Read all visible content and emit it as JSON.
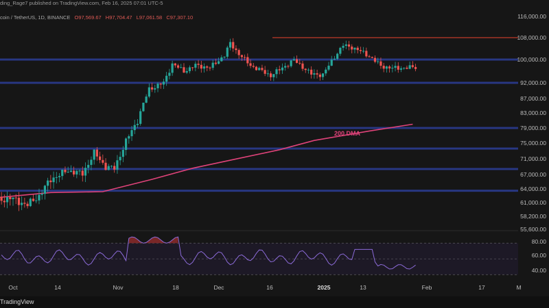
{
  "header": {
    "publish_line": "ding_Rage7 published on TradingView.com, Feb 16, 2025 07:01 UTC-5",
    "symbol": "coin / TetherUS, 1D, BINANCE",
    "ohlc": {
      "o": "O97,569.67",
      "h": "H97,704.47",
      "l": "L97,061.58",
      "c": "C97,307.10"
    }
  },
  "price_axis": {
    "labels": [
      "116,000.00",
      "108,000.00",
      "100,000.00",
      "92,000.00",
      "87,000.00",
      "83,000.00",
      "79,000.00",
      "75,000.00",
      "71,000.00",
      "67,000.00",
      "64,000.00",
      "61,000.00",
      "58,200.00",
      "55,600.00"
    ]
  },
  "rsi_axis": {
    "labels": [
      "80.00",
      "60.00",
      "40.00"
    ]
  },
  "time_axis": {
    "labels": [
      "Oct",
      "14",
      "Nov",
      "18",
      "Dec",
      "16",
      "2025",
      "13",
      "Feb",
      "17",
      "M"
    ]
  },
  "annotation": {
    "dma_label": "200 DMA"
  },
  "footer": {
    "brand": "TradingView"
  },
  "colors": {
    "up": "#26a69a",
    "down": "#ef5350",
    "dma": "#e0437a",
    "support": "#2a3b8f",
    "resistance": "#c0392b",
    "rsi": "#8c6bd9",
    "rsi_overbought_fill": "#8b2a2a"
  },
  "chart_data": {
    "type": "candlestick",
    "title": "",
    "interval": "1D",
    "exchange": "BINANCE",
    "horizontal_levels": [
      100000,
      92000,
      79000,
      73600,
      68400,
      63600
    ],
    "resistance_level": 108000,
    "dma_200": {
      "name": "200 DMA",
      "x": [
        "Sep 24",
        "Oct 14",
        "Nov 1",
        "Nov 18",
        "Dec 2",
        "Dec 16",
        "Jan 1",
        "Jan 13",
        "Feb 1",
        "Feb 16"
      ],
      "values": [
        62000,
        63200,
        63400,
        66000,
        68600,
        70800,
        73300,
        75700,
        78200,
        80000
      ]
    },
    "rsi": {
      "ylim": [
        25,
        85
      ],
      "levels": [
        70,
        50,
        30
      ]
    }
  }
}
